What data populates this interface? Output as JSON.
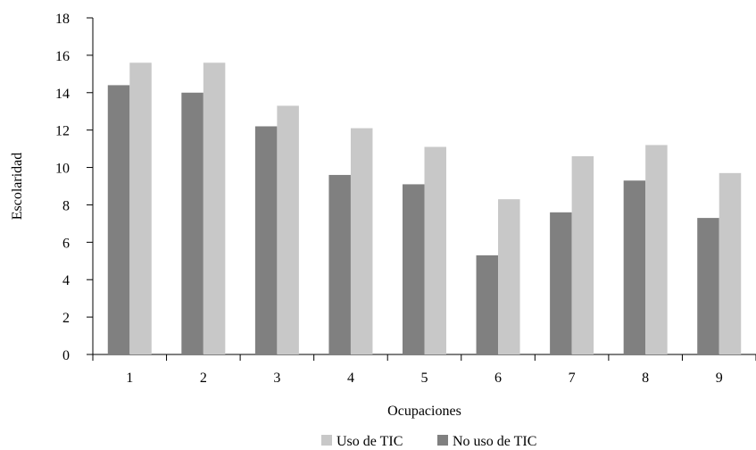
{
  "chart_data": {
    "type": "bar",
    "categories": [
      "1",
      "2",
      "3",
      "4",
      "5",
      "6",
      "7",
      "8",
      "9"
    ],
    "series": [
      {
        "name": "No uso de TIC",
        "color": "#808080",
        "values": [
          14.4,
          14.0,
          12.2,
          9.6,
          9.1,
          5.3,
          7.6,
          9.3,
          7.3
        ]
      },
      {
        "name": "Uso de TIC",
        "color": "#c8c8c8",
        "values": [
          15.6,
          15.6,
          13.3,
          12.1,
          11.1,
          8.3,
          10.6,
          11.2,
          9.7
        ]
      }
    ],
    "xlabel": "Ocupaciones",
    "ylabel": "Escolaridad",
    "ylim": [
      0,
      18
    ],
    "yticks": [
      0,
      2,
      4,
      6,
      8,
      10,
      12,
      14,
      16,
      18
    ],
    "grid": false,
    "legend_position": "bottom-center",
    "legend_order": [
      "Uso de TIC",
      "No uso de TIC"
    ]
  }
}
